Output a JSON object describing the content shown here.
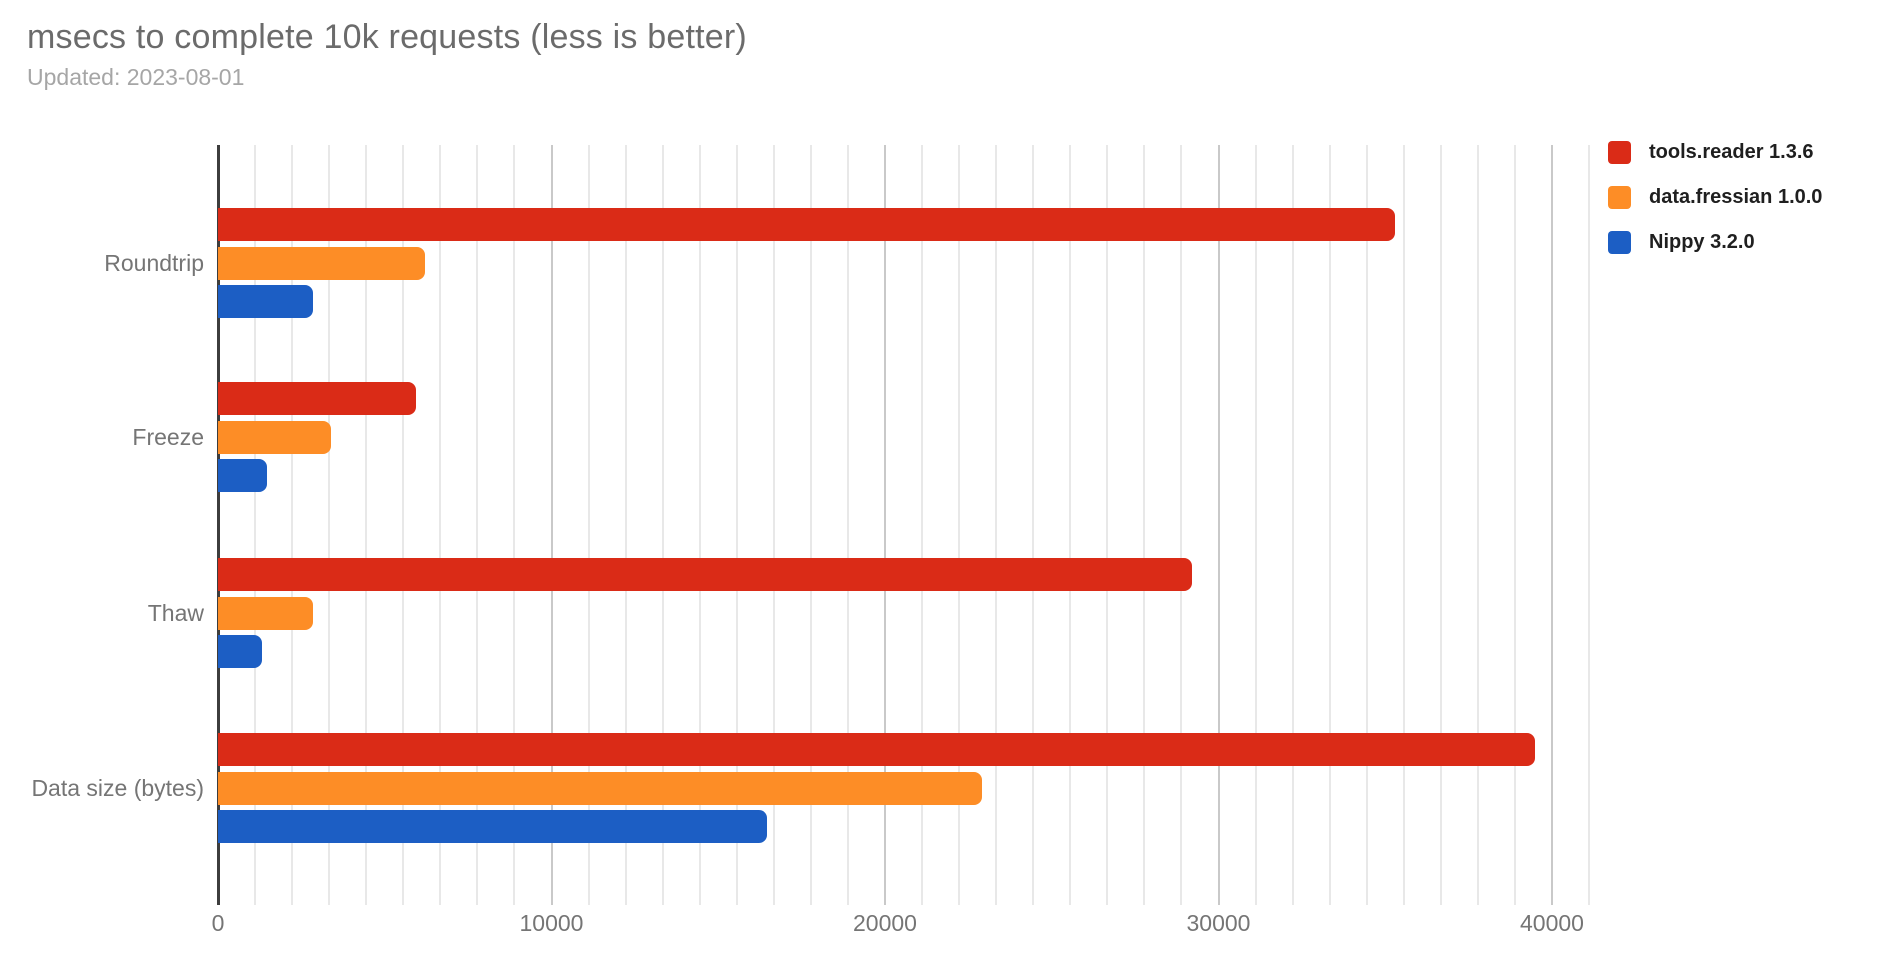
{
  "chart_data": {
    "type": "bar",
    "orientation": "horizontal",
    "title": "msecs to complete 10k requests (less is better)",
    "subtitle": "Updated: 2023-08-01",
    "categories": [
      "Roundtrip",
      "Freeze",
      "Thaw",
      "Data size (bytes)"
    ],
    "series": [
      {
        "name": "tools.reader 1.3.6",
        "color": "#da2b17",
        "values": [
          35300,
          5950,
          29200,
          39500
        ]
      },
      {
        "name": "data.fressian 1.0.0",
        "color": "#fd8d26",
        "values": [
          6200,
          3400,
          2840,
          22900
        ]
      },
      {
        "name": "Nippy 3.2.0",
        "color": "#1c5ec4",
        "values": [
          2840,
          1480,
          1330,
          16450
        ]
      }
    ],
    "xlabel": "",
    "ylabel": "",
    "xlim": [
      0,
      40000
    ],
    "x_ticks": [
      0,
      10000,
      20000,
      30000,
      40000
    ],
    "minor_gridlines_per_major": 9,
    "grid": true,
    "legend_position": "top-right"
  },
  "colors": {
    "background": "#ffffff",
    "title_text": "#6b6b6b",
    "subtitle_text": "#a6a6a6",
    "axis_line": "#3d3d3d",
    "gridline_major": "#c9c9c9",
    "gridline_minor": "#e8e8e8",
    "label_text": "#757575",
    "legend_text": "#1f1f1f"
  }
}
